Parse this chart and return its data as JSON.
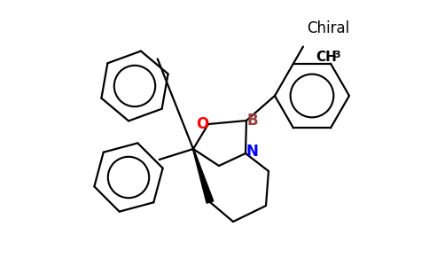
{
  "background_color": "#ffffff",
  "bond_color": "#000000",
  "oxygen_color": "#ff0000",
  "nitrogen_color": "#0000ff",
  "boron_color": "#9B4040",
  "text_color": "#000000",
  "chiral_label": "Chiral",
  "ch3_label": "CH",
  "ch3_sub": "3",
  "B_label": "B",
  "N_label": "N",
  "O_label": "O",
  "figsize": [
    4.84,
    3.0
  ],
  "dpi": 100
}
